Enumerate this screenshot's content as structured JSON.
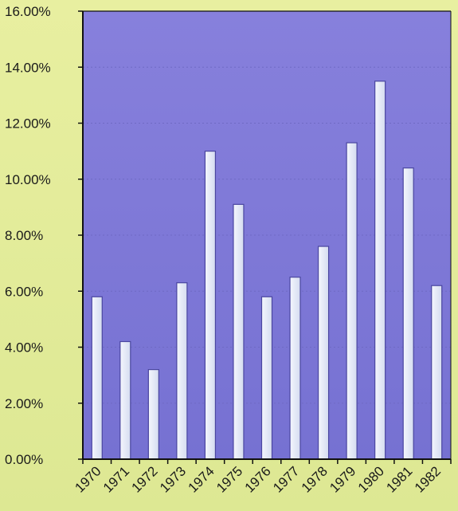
{
  "chart_data": {
    "type": "bar",
    "title": "",
    "xlabel": "",
    "ylabel": "",
    "categories": [
      "1970",
      "1971",
      "1972",
      "1973",
      "1974",
      "1975",
      "1976",
      "1977",
      "1978",
      "1979",
      "1980",
      "1981",
      "1982"
    ],
    "values": [
      5.8,
      4.2,
      3.2,
      6.3,
      11.0,
      9.1,
      5.8,
      6.5,
      7.6,
      11.3,
      13.5,
      10.4,
      6.2
    ],
    "value_format": "percent",
    "ylim": [
      0,
      16
    ],
    "yticks": [
      "0.00%",
      "2.00%",
      "4.00%",
      "6.00%",
      "8.00%",
      "10.00%",
      "12.00%",
      "14.00%",
      "16.00%"
    ],
    "grid": true,
    "legend": "none",
    "colors": {
      "background": "#e4ec96",
      "plot_area": "#7f7ad8",
      "bar_fill": "#e6ecf7",
      "bar_stroke": "#4a46a0",
      "axis": "#111111"
    }
  }
}
